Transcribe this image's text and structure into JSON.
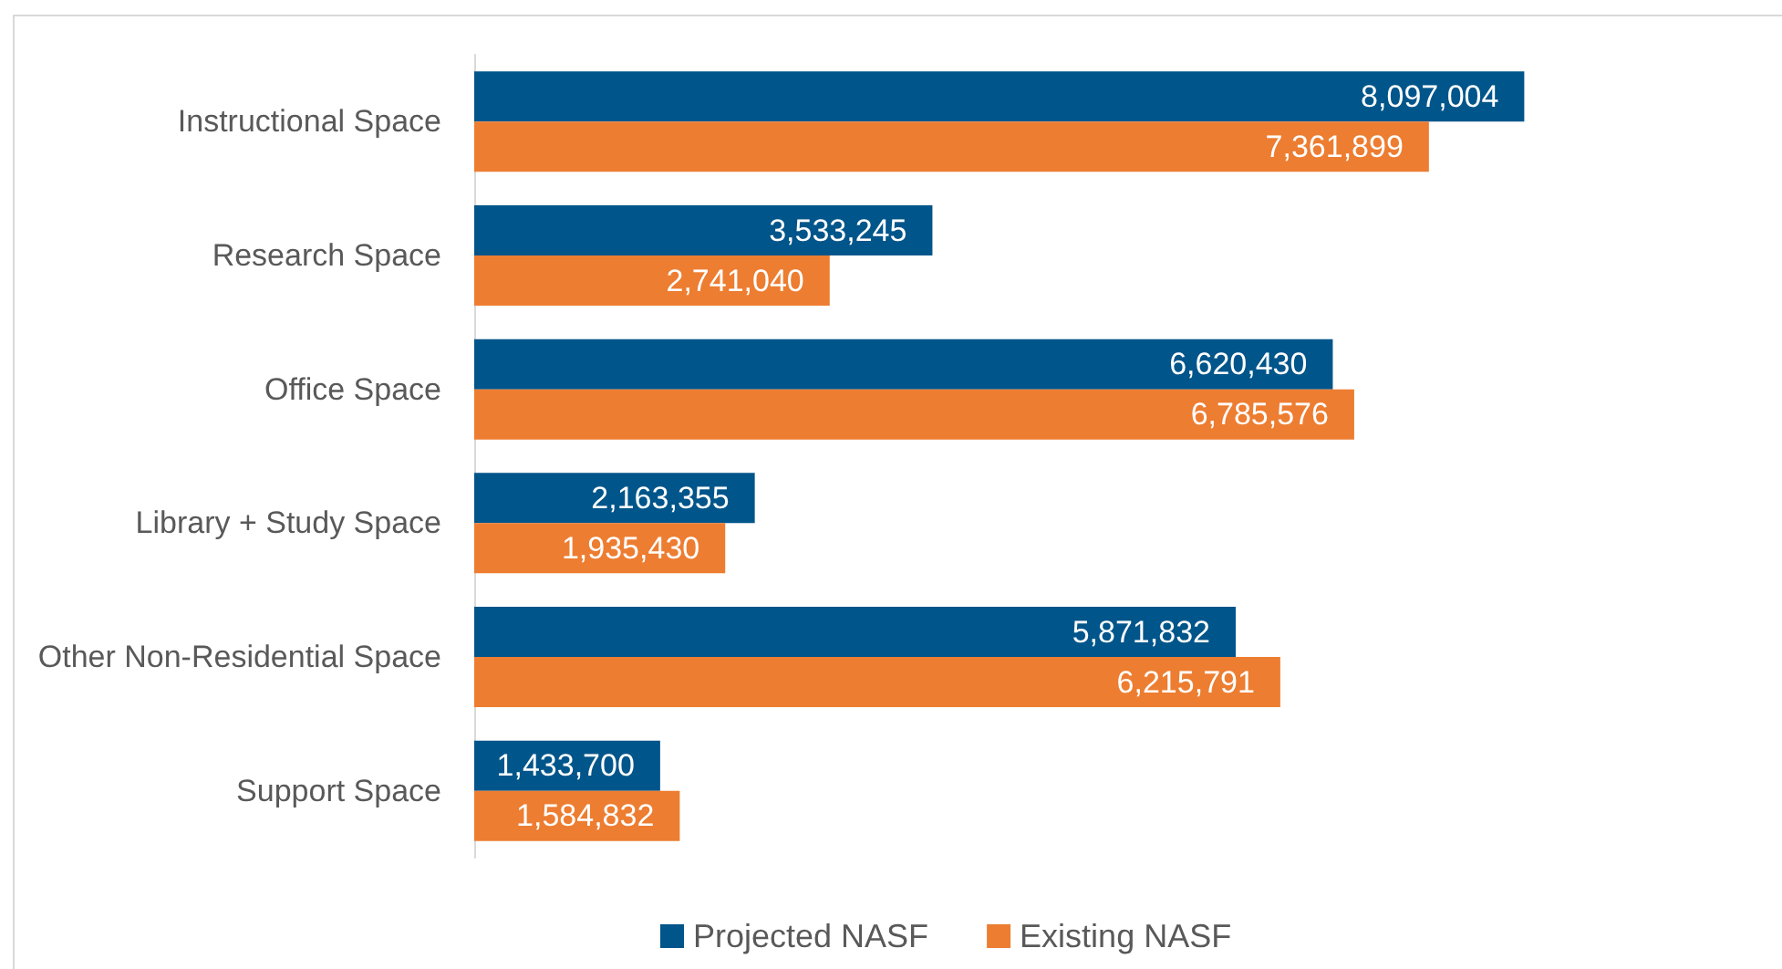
{
  "chart_data": {
    "type": "bar",
    "orientation": "horizontal",
    "categories": [
      "Instructional Space",
      "Research Space",
      "Office Space",
      "Library + Study Space",
      "Other Non-Residential Space",
      "Support Space"
    ],
    "series": [
      {
        "name": "Projected NASF",
        "color": "#00558a",
        "values": [
          8097004,
          3533245,
          6620430,
          2163355,
          5871832,
          1433700
        ],
        "value_labels": [
          "8,097,004",
          "3,533,245",
          "6,620,430",
          "2,163,355",
          "5,871,832",
          "1,433,700"
        ]
      },
      {
        "name": "Existing NASF",
        "color": "#ed7d31",
        "values": [
          7361899,
          2741040,
          6785576,
          1935430,
          6215791,
          1584832
        ],
        "value_labels": [
          "7,361,899",
          "2,741,040",
          "6,785,576",
          "1,935,430",
          "6,215,791",
          "1,584,832"
        ]
      }
    ],
    "tick_labels": "y",
    "grid": false,
    "legend": "bottom"
  }
}
